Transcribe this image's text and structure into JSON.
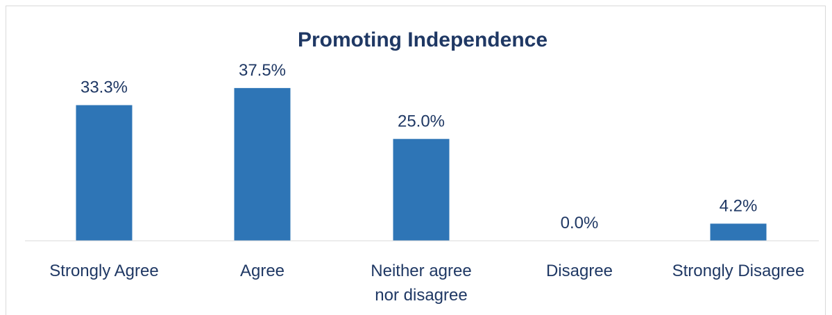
{
  "chart_data": {
    "type": "bar",
    "title": "Promoting Independence",
    "categories": [
      "Strongly Agree",
      "Agree",
      "Neither agree nor disagree",
      "Disagree",
      "Strongly Disagree"
    ],
    "category_lines": [
      [
        "Strongly Agree"
      ],
      [
        "Agree"
      ],
      [
        "Neither agree",
        "nor disagree"
      ],
      [
        "Disagree"
      ],
      [
        "Strongly Disagree"
      ]
    ],
    "values": [
      33.3,
      37.5,
      25.0,
      0.0,
      4.2
    ],
    "data_labels": [
      "33.3%",
      "37.5%",
      "25.0%",
      "0.0%",
      "4.2%"
    ],
    "value_unit": "%",
    "bar_color": "#2e75b6",
    "text_color": "#1f3864",
    "grid": false,
    "legend": "none",
    "xlabel": "",
    "ylabel": ""
  }
}
